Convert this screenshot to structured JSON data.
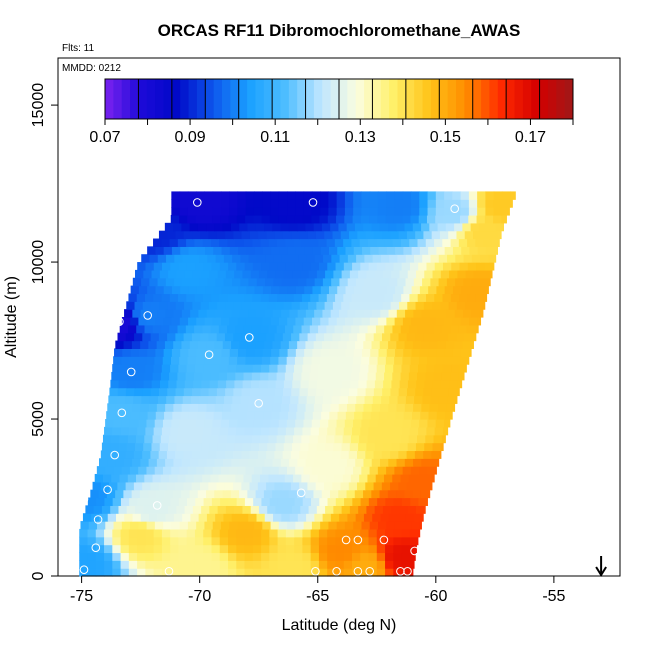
{
  "chart_data": {
    "type": "heatmap",
    "title": "ORCAS RF11 Dibromochloromethane_AWAS",
    "info_lines": [
      "Flts: 11",
      "MMDD: 0212"
    ],
    "xlabel": "Latitude (deg N)",
    "ylabel": "Altitude (m)",
    "xlim": [
      -76,
      -52.2
    ],
    "ylim": [
      0,
      16500
    ],
    "x_ticks": [
      -75,
      -70,
      -65,
      -60,
      -55
    ],
    "y_ticks": [
      0,
      5000,
      10000,
      15000
    ],
    "colorbar": {
      "min": 0.07,
      "max": 0.18,
      "tick_values": [
        0.07,
        0.09,
        0.11,
        0.13,
        0.15,
        0.17
      ],
      "tick_labels": [
        "0.07",
        "0.09",
        "0.11",
        "0.13",
        "0.15",
        "0.17"
      ],
      "colors": [
        "#7b22f0",
        "#1c0ad8",
        "#0009c8",
        "#0d56ec",
        "#1aa0ff",
        "#4dbdff",
        "#bfe6ff",
        "#fbfddf",
        "#fff06a",
        "#ffc419",
        "#ff8e00",
        "#ff2a00",
        "#d50000",
        "#a01818"
      ]
    },
    "field": {
      "description": "interpolated cross-section (values 0.07–0.18)",
      "boundary_left": [
        [
          -75.1,
          0
        ],
        [
          -75.1,
          1500
        ],
        [
          -74.6,
          2700
        ],
        [
          -74.2,
          3800
        ],
        [
          -73.8,
          6000
        ],
        [
          -73.6,
          7300
        ],
        [
          -72.6,
          10000
        ],
        [
          -71.2,
          11400
        ],
        [
          -71.2,
          12000
        ]
      ],
      "boundary_right": [
        [
          -56.6,
          12200
        ],
        [
          -57.2,
          11000
        ],
        [
          -58,
          8400
        ],
        [
          -59.4,
          4900
        ],
        [
          -60.5,
          2000
        ],
        [
          -60.8,
          1000
        ],
        [
          -61,
          0
        ]
      ]
    },
    "samples": [
      {
        "lat": -70.1,
        "alt": 11900
      },
      {
        "lat": -65.2,
        "alt": 11900
      },
      {
        "lat": -59.2,
        "alt": 11700
      },
      {
        "lat": -72.2,
        "alt": 8300
      },
      {
        "lat": -73.4,
        "alt": 8100
      },
      {
        "lat": -67.9,
        "alt": 7600
      },
      {
        "lat": -69.6,
        "alt": 7050
      },
      {
        "lat": -72.9,
        "alt": 6500
      },
      {
        "lat": -67.5,
        "alt": 5500
      },
      {
        "lat": -73.3,
        "alt": 5200
      },
      {
        "lat": -74.2,
        "alt": 4850
      },
      {
        "lat": -73.6,
        "alt": 3850
      },
      {
        "lat": -73.9,
        "alt": 2750
      },
      {
        "lat": -65.7,
        "alt": 2650
      },
      {
        "lat": -74.9,
        "alt": 2450
      },
      {
        "lat": -71.8,
        "alt": 2250
      },
      {
        "lat": -74.3,
        "alt": 1800
      },
      {
        "lat": -63.8,
        "alt": 1150
      },
      {
        "lat": -62.2,
        "alt": 1150
      },
      {
        "lat": -63.3,
        "alt": 1150
      },
      {
        "lat": -74.4,
        "alt": 900
      },
      {
        "lat": -60.9,
        "alt": 800
      },
      {
        "lat": -74.9,
        "alt": 200
      },
      {
        "lat": -71.3,
        "alt": 150
      },
      {
        "lat": -65.1,
        "alt": 150
      },
      {
        "lat": -64.2,
        "alt": 150
      },
      {
        "lat": -63.3,
        "alt": 150
      },
      {
        "lat": -62.8,
        "alt": 150
      },
      {
        "lat": -61.5,
        "alt": 150
      },
      {
        "lat": -61.2,
        "alt": 150
      }
    ],
    "arrow": {
      "lat": -53,
      "direction": "down"
    },
    "grid": false
  }
}
